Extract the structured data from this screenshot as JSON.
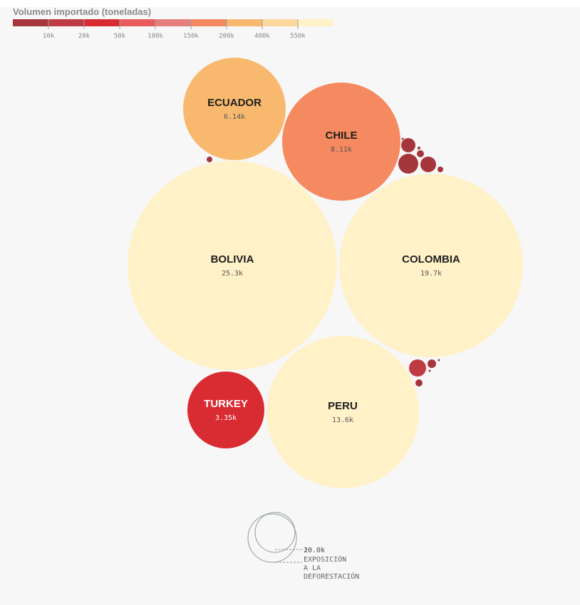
{
  "legend": {
    "title": "Volumen importado (toneladas)",
    "colors": [
      "#a5373c",
      "#bf3a42",
      "#d92b32",
      "#e85c60",
      "#e47f7d",
      "#f5895f",
      "#f8b96f",
      "#fcd89c",
      "#fff1c8"
    ],
    "ticks": [
      "10k",
      "20k",
      "50k",
      "100k",
      "150k",
      "200k",
      "400k",
      "550k"
    ]
  },
  "chart_data": {
    "type": "bubble",
    "title": "",
    "bubbles": [
      {
        "name": "ECUADOR",
        "value_label": "6.14k",
        "value": 6140,
        "color": "#f8b96f"
      },
      {
        "name": "CHILE",
        "value_label": "8.11k",
        "value": 8110,
        "color": "#f5895f"
      },
      {
        "name": "BOLIVIA",
        "value_label": "25.3k",
        "value": 25300,
        "color": "#fff1c8"
      },
      {
        "name": "COLOMBIA",
        "value_label": "19.7k",
        "value": 19700,
        "color": "#fff1c8"
      },
      {
        "name": "PERU",
        "value_label": "13.6k",
        "value": 13600,
        "color": "#fff1c8"
      },
      {
        "name": "TURKEY",
        "value_label": "3.35k",
        "value": 3350,
        "color": "#d92b32"
      }
    ],
    "unlabeled_bubbles": [
      {
        "color": "#a5373c"
      },
      {
        "color": "#a5373c"
      },
      {
        "color": "#a5373c"
      },
      {
        "color": "#a5373c"
      },
      {
        "color": "#a5373c"
      },
      {
        "color": "#a5373c"
      },
      {
        "color": "#a5373c"
      },
      {
        "color": "#a5373c"
      },
      {
        "color": "#bf3a42"
      },
      {
        "color": "#a5373c"
      },
      {
        "color": "#a5373c"
      },
      {
        "color": "#a5373c"
      },
      {
        "color": "#a5373c"
      }
    ]
  },
  "size_legend": {
    "value": "20.0k",
    "value_overlap": "10.0k",
    "lines": [
      "EXPOSICIÓN",
      "A LA",
      "DEFORESTACIÓN"
    ]
  }
}
